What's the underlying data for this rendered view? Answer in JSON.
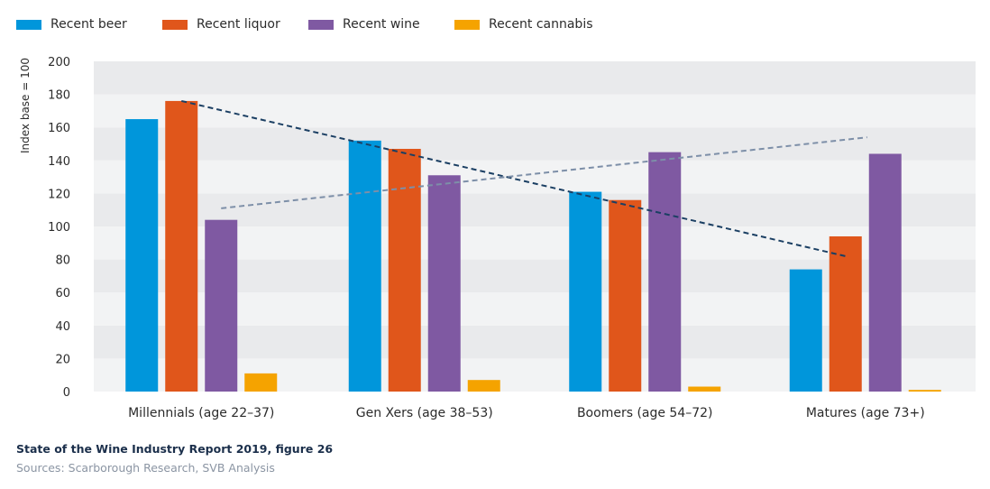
{
  "chart_data": {
    "type": "bar",
    "ylabel": "Index base = 100",
    "ylim": [
      0,
      200
    ],
    "yticks": [
      0,
      20,
      40,
      60,
      80,
      100,
      120,
      140,
      160,
      180,
      200
    ],
    "categories": [
      "Millennials (age 22–37)",
      "Gen Xers (age 38–53)",
      "Boomers (age 54–72)",
      "Matures (age 73+)"
    ],
    "series": [
      {
        "name": "Recent beer",
        "color": "#0096db",
        "values": [
          165,
          152,
          121,
          74
        ]
      },
      {
        "name": "Recent liquor",
        "color": "#e0561b",
        "values": [
          176,
          147,
          116,
          94
        ]
      },
      {
        "name": "Recent wine",
        "color": "#7f59a2",
        "values": [
          104,
          131,
          145,
          144
        ]
      },
      {
        "name": "Recent cannabis",
        "color": "#f5a300",
        "values": [
          11,
          7,
          3,
          1
        ]
      }
    ],
    "trendlines": [
      {
        "from_category": "Millennials (age 22–37)",
        "to_category": "Matures (age 73+)",
        "y_start": 176,
        "y_end": 82,
        "color": "#1b3f63",
        "style": "dashed"
      },
      {
        "from_category": "Millennials (age 22–37)",
        "to_category": "Matures (age 73+)",
        "y_start": 111,
        "y_end": 154,
        "color": "#7d8fa8",
        "style": "dashed"
      }
    ],
    "legend_position": "top-left",
    "grid": "alternating horizontal bands",
    "background_band_color": "#f1f2f3"
  },
  "footer": {
    "title": "State of the Wine Industry Report 2019, figure 26",
    "source": "Sources: Scarborough Research, SVB Analysis"
  }
}
